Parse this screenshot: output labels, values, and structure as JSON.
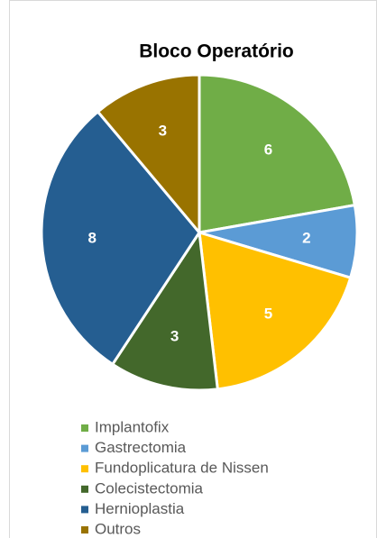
{
  "chart_data": {
    "type": "pie",
    "title": "Bloco Operatório",
    "categories": [
      "Implantofix",
      "Gastrectomia",
      "Fundoplicatura de Nissen",
      "Colecistectomia",
      "Hernioplastia",
      "Outros"
    ],
    "values": [
      6,
      2,
      5,
      3,
      8,
      3
    ],
    "colors": [
      "#70ad47",
      "#5b9bd5",
      "#ffc000",
      "#43682b",
      "#255e91",
      "#997300"
    ],
    "legend": "bottom"
  }
}
